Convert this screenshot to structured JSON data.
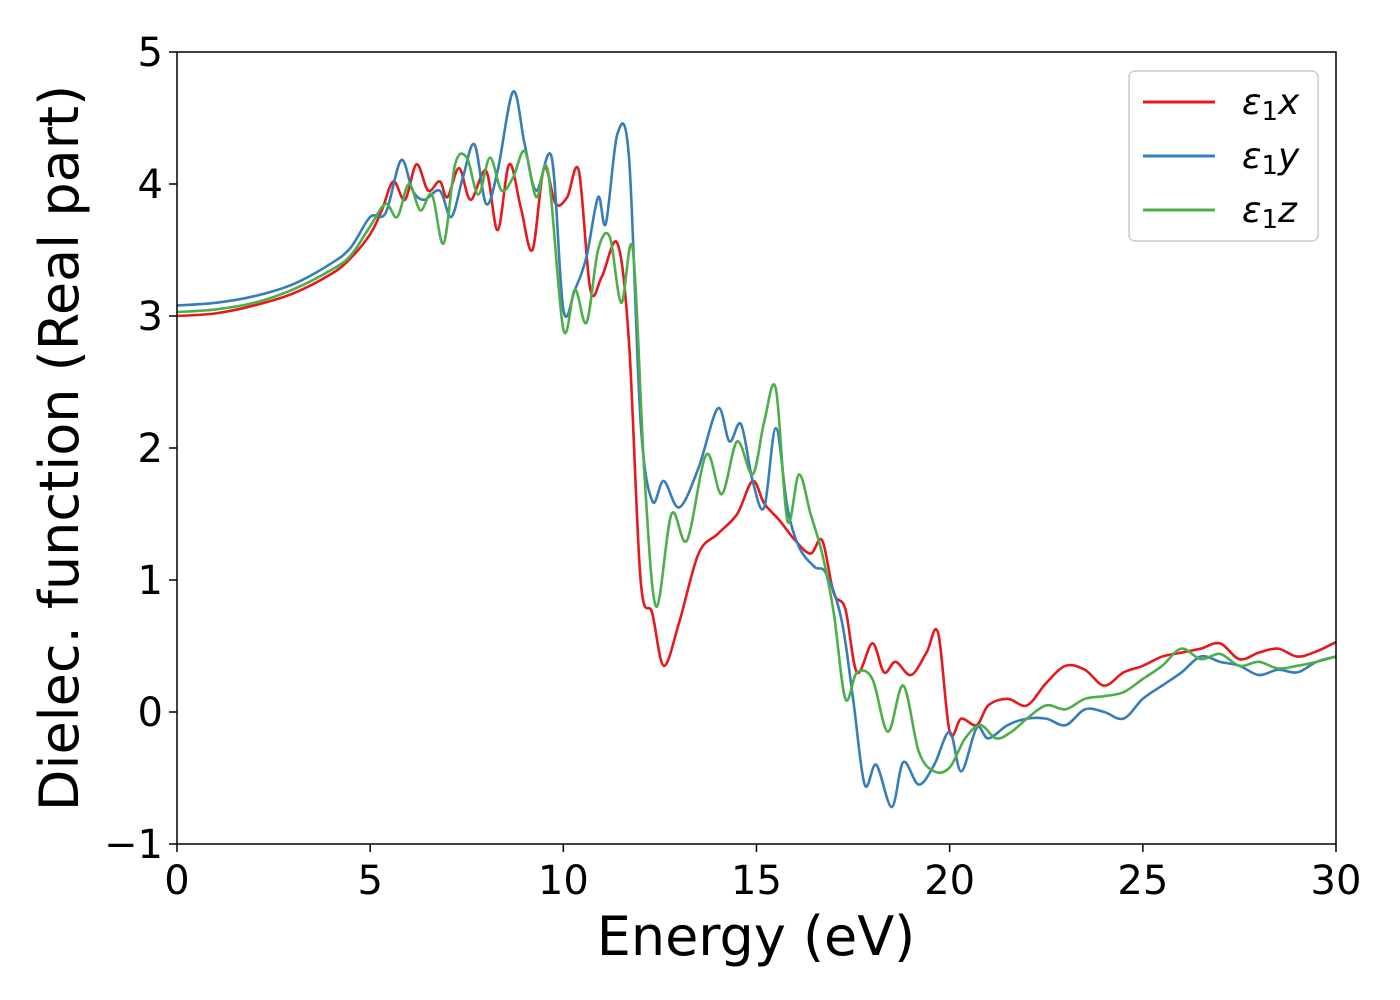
{
  "chart_data": {
    "type": "line",
    "xlabel": "Energy (eV)",
    "ylabel": "Dielec. function (Real part)",
    "xlim": [
      0,
      30
    ],
    "ylim": [
      -1,
      5
    ],
    "xticks": [
      0,
      5,
      10,
      15,
      20,
      25,
      30
    ],
    "yticks": [
      -1,
      0,
      1,
      2,
      3,
      4,
      5
    ],
    "ytick_labels": [
      "−1",
      "0",
      "1",
      "2",
      "3",
      "4",
      "5"
    ],
    "grid": false,
    "legend_position": "top-right",
    "series": [
      {
        "name": "ε1x",
        "color": "#e41a1c",
        "x": [
          0,
          1,
          2,
          3,
          4,
          4.5,
          5,
          5.3,
          5.6,
          5.9,
          6.2,
          6.5,
          6.8,
          7.0,
          7.3,
          7.6,
          8.0,
          8.3,
          8.6,
          8.9,
          9.2,
          9.5,
          9.8,
          10.1,
          10.4,
          10.7,
          11.0,
          11.4,
          11.7,
          12.0,
          12.3,
          12.6,
          13.0,
          13.5,
          14.0,
          14.5,
          14.9,
          15.2,
          15.6,
          16.0,
          16.4,
          16.7,
          17.0,
          17.3,
          17.6,
          18.0,
          18.3,
          18.6,
          19.0,
          19.4,
          19.7,
          20.0,
          20.3,
          20.7,
          21.0,
          21.5,
          22.0,
          22.5,
          23.0,
          23.5,
          24.0,
          24.5,
          25.0,
          25.5,
          26.0,
          26.5,
          27.0,
          27.5,
          28.0,
          28.5,
          29.0,
          29.5,
          30.0
        ],
        "y": [
          3.0,
          3.02,
          3.08,
          3.17,
          3.32,
          3.44,
          3.62,
          3.8,
          4.02,
          3.88,
          4.15,
          3.95,
          4.02,
          3.9,
          4.12,
          3.88,
          4.1,
          3.65,
          4.15,
          3.82,
          3.5,
          4.12,
          3.85,
          3.9,
          4.1,
          3.2,
          3.3,
          3.55,
          2.8,
          1.0,
          0.75,
          0.35,
          0.68,
          1.2,
          1.35,
          1.5,
          1.75,
          1.58,
          1.45,
          1.3,
          1.2,
          1.3,
          0.9,
          0.78,
          0.3,
          0.52,
          0.3,
          0.38,
          0.28,
          0.45,
          0.6,
          -0.15,
          -0.05,
          -0.1,
          0.05,
          0.1,
          0.05,
          0.22,
          0.35,
          0.32,
          0.2,
          0.3,
          0.35,
          0.42,
          0.45,
          0.48,
          0.52,
          0.4,
          0.45,
          0.48,
          0.42,
          0.46,
          0.53
        ]
      },
      {
        "name": "ε1y",
        "color": "#377eb8",
        "x": [
          0,
          1,
          2,
          3,
          4,
          4.5,
          5.0,
          5.4,
          5.8,
          6.1,
          6.4,
          6.8,
          7.1,
          7.4,
          7.7,
          8.0,
          8.3,
          8.7,
          9.0,
          9.3,
          9.7,
          10.0,
          10.3,
          10.6,
          10.9,
          11.1,
          11.4,
          11.7,
          12.0,
          12.3,
          12.6,
          13.0,
          13.5,
          14.0,
          14.3,
          14.6,
          14.9,
          15.2,
          15.5,
          15.8,
          16.1,
          16.5,
          16.8,
          17.2,
          17.5,
          17.8,
          18.1,
          18.5,
          18.8,
          19.2,
          19.6,
          20.0,
          20.3,
          20.7,
          21.0,
          21.5,
          22.0,
          22.5,
          23.0,
          23.5,
          24.0,
          24.5,
          25.0,
          25.5,
          26.0,
          26.5,
          27.0,
          27.5,
          28.0,
          28.5,
          29.0,
          29.5,
          30.0
        ],
        "y": [
          3.08,
          3.1,
          3.15,
          3.24,
          3.4,
          3.52,
          3.75,
          3.78,
          4.18,
          3.95,
          3.88,
          3.95,
          3.75,
          4.05,
          4.3,
          3.85,
          4.1,
          4.7,
          4.3,
          3.95,
          4.2,
          3.05,
          3.2,
          3.45,
          3.9,
          3.7,
          4.38,
          4.2,
          2.2,
          1.6,
          1.75,
          1.55,
          1.85,
          2.3,
          2.05,
          2.18,
          1.75,
          1.55,
          2.15,
          1.55,
          1.25,
          1.1,
          1.05,
          0.7,
          0.1,
          -0.55,
          -0.4,
          -0.72,
          -0.38,
          -0.55,
          -0.4,
          -0.15,
          -0.45,
          -0.12,
          -0.2,
          -0.1,
          -0.05,
          -0.05,
          -0.1,
          0.02,
          0.0,
          -0.05,
          0.1,
          0.2,
          0.3,
          0.42,
          0.38,
          0.35,
          0.28,
          0.32,
          0.3,
          0.38,
          0.42
        ]
      },
      {
        "name": "ε1z",
        "color": "#4daf4a",
        "x": [
          0,
          1,
          2,
          3,
          4,
          4.5,
          5.0,
          5.4,
          5.7,
          6.0,
          6.3,
          6.6,
          6.9,
          7.2,
          7.5,
          7.8,
          8.1,
          8.4,
          8.7,
          9.0,
          9.3,
          9.6,
          10.0,
          10.3,
          10.6,
          10.9,
          11.2,
          11.5,
          11.8,
          12.1,
          12.4,
          12.8,
          13.2,
          13.7,
          14.1,
          14.5,
          14.9,
          15.2,
          15.5,
          15.8,
          16.1,
          16.4,
          16.7,
          17.0,
          17.3,
          17.6,
          18.0,
          18.4,
          18.8,
          19.2,
          19.6,
          20.0,
          20.4,
          20.8,
          21.2,
          21.6,
          22.0,
          22.5,
          23.0,
          23.5,
          24.0,
          24.5,
          25.0,
          25.5,
          26.0,
          26.5,
          27.0,
          27.5,
          28.0,
          28.5,
          29.0,
          29.5,
          30.0
        ],
        "y": [
          3.03,
          3.05,
          3.1,
          3.2,
          3.35,
          3.46,
          3.68,
          3.85,
          3.75,
          4.0,
          3.8,
          3.92,
          3.55,
          4.15,
          4.2,
          3.92,
          4.2,
          3.95,
          4.05,
          4.25,
          3.9,
          4.1,
          2.9,
          3.2,
          2.95,
          3.5,
          3.6,
          3.1,
          3.5,
          1.8,
          0.8,
          1.5,
          1.3,
          1.95,
          1.65,
          2.05,
          1.8,
          2.2,
          2.45,
          1.45,
          1.8,
          1.5,
          1.2,
          0.75,
          0.1,
          0.3,
          0.25,
          -0.15,
          0.2,
          -0.3,
          -0.45,
          -0.42,
          -0.2,
          -0.1,
          -0.2,
          -0.15,
          -0.05,
          0.05,
          0.02,
          0.1,
          0.12,
          0.15,
          0.25,
          0.35,
          0.48,
          0.4,
          0.44,
          0.35,
          0.38,
          0.33,
          0.35,
          0.38,
          0.42
        ]
      }
    ]
  }
}
